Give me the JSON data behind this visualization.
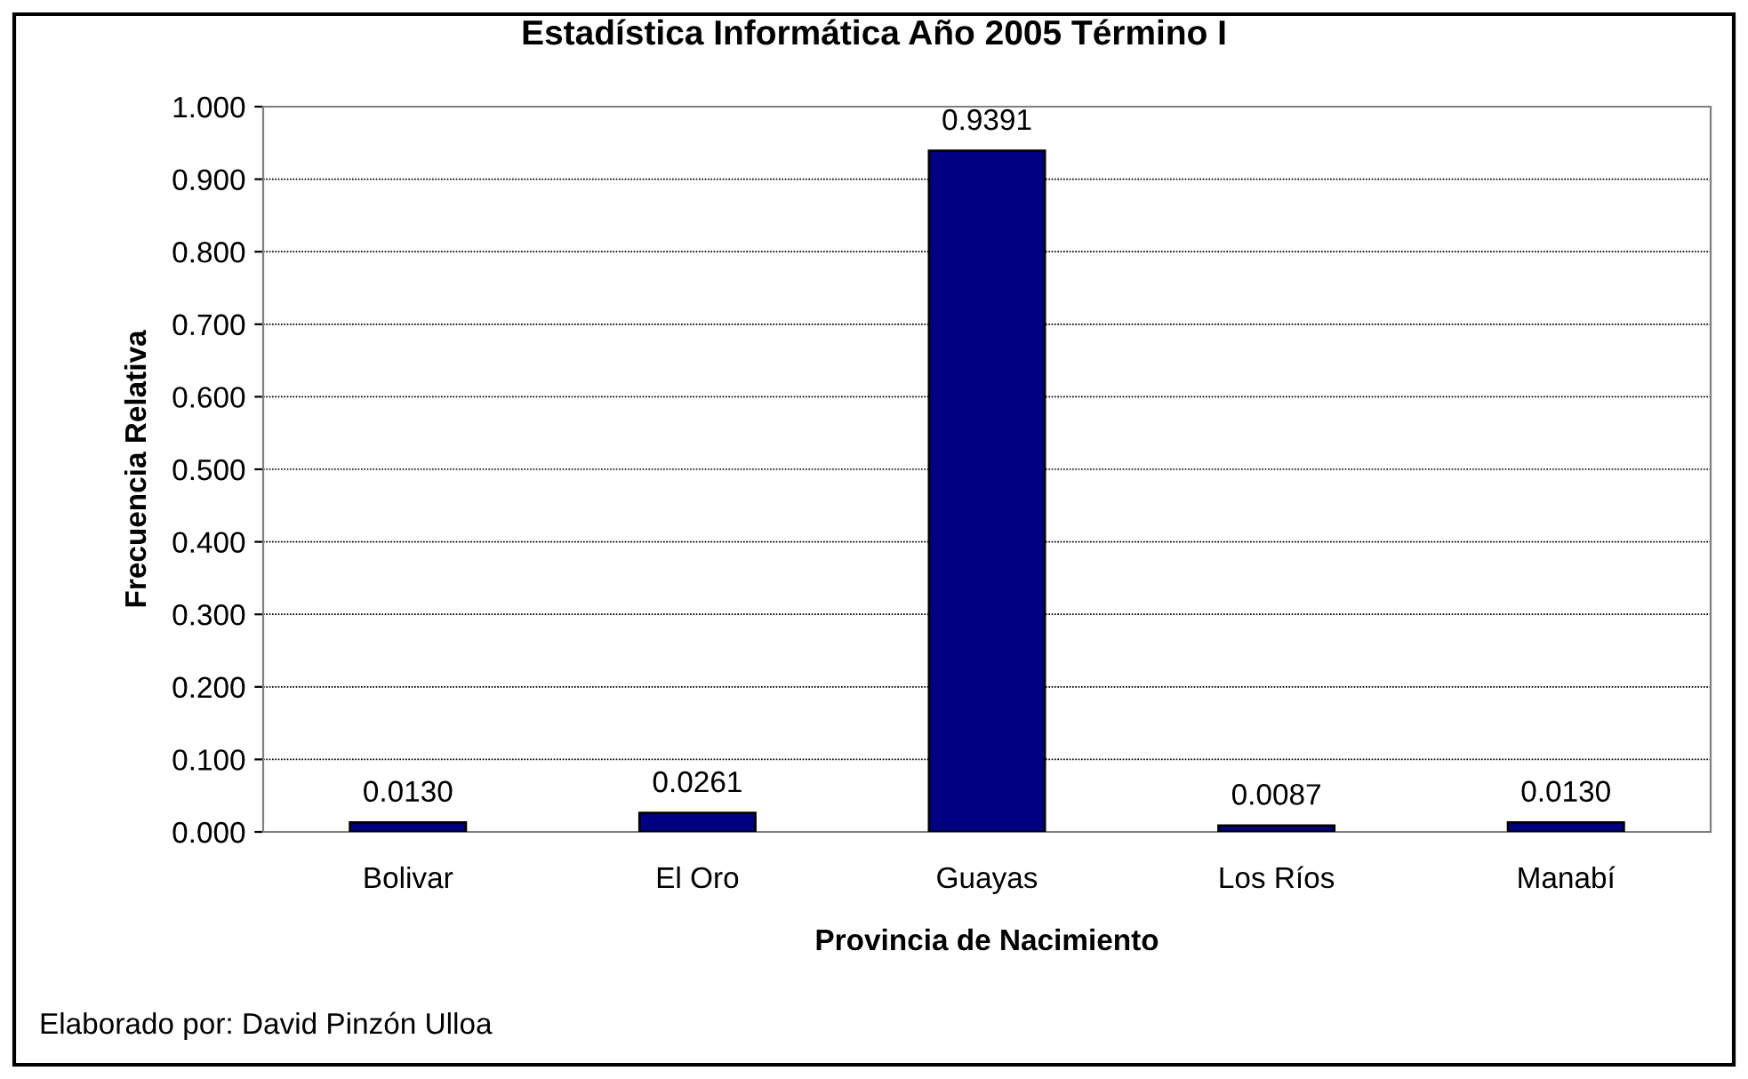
{
  "chart_data": {
    "type": "bar",
    "title": "Estadística Informática Año 2005 Término I",
    "xlabel": "Provincia de Nacimiento",
    "ylabel": "Frecuencia Relativa",
    "categories": [
      "Bolivar",
      "El Oro",
      "Guayas",
      "Los Ríos",
      "Manabí"
    ],
    "values": [
      0.013,
      0.0261,
      0.9391,
      0.0087,
      0.013
    ],
    "value_labels": [
      "0.0130",
      "0.0261",
      "0.9391",
      "0.0087",
      "0.0130"
    ],
    "color": "#000080",
    "ylim": [
      0,
      1
    ],
    "yticks": [
      {
        "value": 0,
        "label": "0.000"
      },
      {
        "value": 0.1,
        "label": "0.100"
      },
      {
        "value": 0.2,
        "label": "0.200"
      },
      {
        "value": 0.3,
        "label": "0.300"
      },
      {
        "value": 0.4,
        "label": "0.400"
      },
      {
        "value": 0.5,
        "label": "0.500"
      },
      {
        "value": 0.6,
        "label": "0.600"
      },
      {
        "value": 0.7,
        "label": "0.700"
      },
      {
        "value": 0.8,
        "label": "0.800"
      },
      {
        "value": 0.9,
        "label": "0.900"
      },
      {
        "value": 1,
        "label": "1.000"
      }
    ],
    "grid": "y",
    "annotations": [
      "Elaborado por: David Pinzón Ulloa"
    ]
  }
}
